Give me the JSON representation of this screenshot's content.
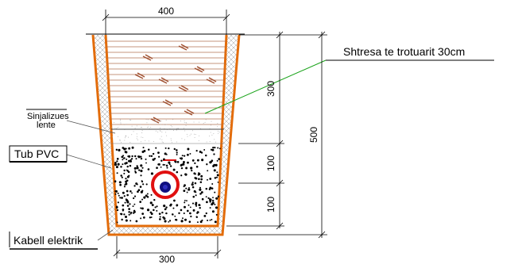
{
  "colors": {
    "trench_outline": "#e36c0a",
    "callout_line": "#1aa31a",
    "pipe_ring": "#e01010",
    "cable_core": "#101080",
    "hatch_line": "#b07050",
    "dimension_line": "#000000"
  },
  "dimensions": {
    "top_width": "400",
    "bottom_width": "300",
    "total_depth": "500",
    "upper_layer": "300",
    "middle_layer": "100",
    "bottom_layer": "100"
  },
  "labels": {
    "pavement_layer": "Shtresa te trotuarit 30cm",
    "warning_tape_line1": "Sinjalizues",
    "warning_tape_line2": "lente",
    "pvc_pipe": "Tub PVC",
    "electric_cable": "Kabell elektrik"
  },
  "icons": [
    "trench-section",
    "pvc-pipe-ring-icon",
    "cable-core-icon",
    "warning-tape-icon"
  ]
}
